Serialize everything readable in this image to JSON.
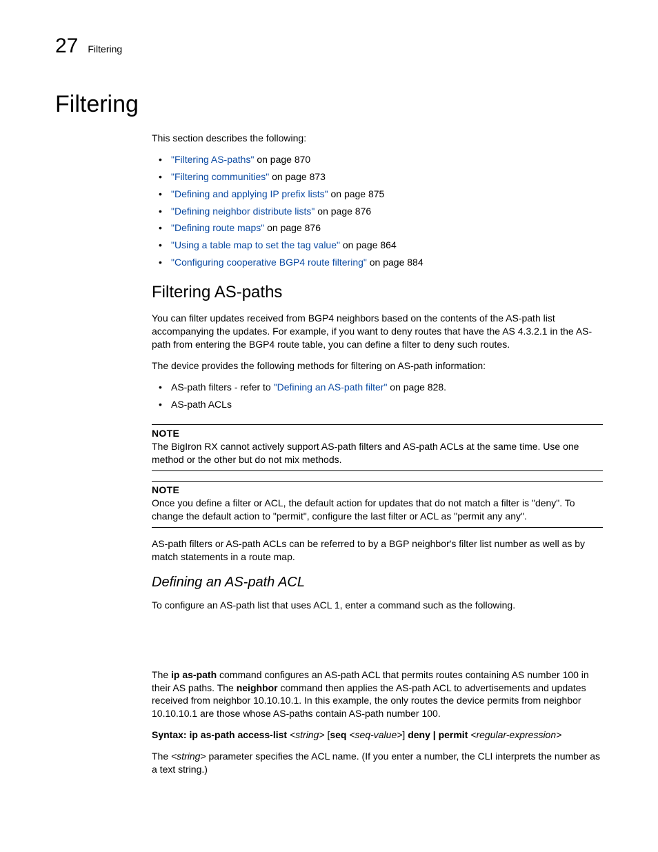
{
  "header": {
    "chapter_number": "27",
    "breadcrumb": "Filtering"
  },
  "title": "Filtering",
  "intro": "This section describes the following:",
  "toc": [
    {
      "link": "\"Filtering AS-paths\"",
      "suffix": " on page 870"
    },
    {
      "link": "\"Filtering communities\"",
      "suffix": " on page 873"
    },
    {
      "link": "\"Defining and applying IP prefix lists\"",
      "suffix": " on page 875"
    },
    {
      "link": "\"Defining neighbor distribute lists\"",
      "suffix": " on page 876"
    },
    {
      "link": "\"Defining route maps\"",
      "suffix": " on page 876"
    },
    {
      "link": "\"Using a table map to set the tag value\"",
      "suffix": " on page 864"
    },
    {
      "link": "\"Configuring cooperative BGP4 route filtering\"",
      "suffix": " on page 884"
    }
  ],
  "aspaths": {
    "heading": "Filtering AS-paths",
    "p1": "You can filter updates received from BGP4 neighbors based on the contents of the AS-path list accompanying the updates.  For example, if you want to deny routes that have the AS 4.3.2.1 in the AS-path from entering the BGP4 route table, you can define a filter to deny such routes.",
    "p2": "The device provides the following methods for filtering on AS-path information:",
    "bullet1_prefix": "AS-path filters - refer to ",
    "bullet1_link": "\"Defining an AS-path filter\"",
    "bullet1_suffix": " on page 828.",
    "bullet2": "AS-path ACLs",
    "note1_label": "NOTE",
    "note1_body": "The BigIron RX cannot actively support AS-path filters and AS-path ACLs at the same time. Use one method or the other but do not mix methods.",
    "note2_label": "NOTE",
    "note2_body": "Once you define a filter or ACL, the default action for updates that do not match a filter is \"deny\". To change the default action to \"permit\", configure the last filter or ACL as \"permit any any\".",
    "p3": "AS-path filters or AS-path ACLs can be referred to by a BGP neighbor's filter list number as well as by match statements in a route map."
  },
  "acl": {
    "heading": "Defining an AS-path ACL",
    "p1": "To configure an AS-path list that uses ACL 1, enter a command such as the following.",
    "p2_pre": "The ",
    "p2_b1": "ip as-path",
    "p2_mid1": " command configures an AS-path ACL that permits routes containing AS number 100 in their AS paths. The ",
    "p2_b2": "neighbor",
    "p2_mid2": " command then applies the AS-path ACL to advertisements and updates received from neighbor 10.10.10.1. In this example, the only routes the device permits from neighbor 10.10.10.1 are those whose AS-paths contain AS-path number 100.",
    "syntax_b1": "Syntax:  ip as-path access-list ",
    "syntax_i1": "<string>",
    "syntax_t1": " [",
    "syntax_b2": "seq ",
    "syntax_i2": "<seq-value>",
    "syntax_t2": "] ",
    "syntax_b3": "deny | permit ",
    "syntax_i3": "<regular-expression>",
    "p3_pre": "The ",
    "p3_i1": "<string>",
    "p3_post": " parameter specifies the ACL name.  (If you enter a number, the CLI interprets the number as a text string.)"
  }
}
